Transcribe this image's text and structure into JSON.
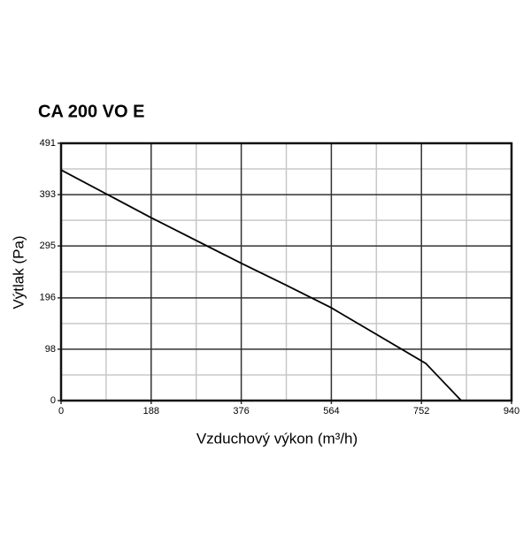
{
  "chart_data": {
    "type": "line",
    "title": "CA 200 VO E",
    "x_label": "Vzduchový výkon (m³/h)",
    "y_label": "Výtlak (Pa)",
    "x": [
      0,
      188,
      376,
      470,
      564,
      761,
      835
    ],
    "series": [
      {
        "name": "CA 200 VO E",
        "color": "#000000",
        "values": [
          440,
          349,
          262,
          220,
          177,
          71,
          0
        ]
      }
    ],
    "xlim": [
      0,
      940
    ],
    "xticks": [
      0,
      188,
      376,
      564,
      752,
      940
    ],
    "ylim": [
      0,
      491
    ],
    "yticks": [
      0,
      98,
      196,
      295,
      393,
      491
    ],
    "grid": true
  }
}
